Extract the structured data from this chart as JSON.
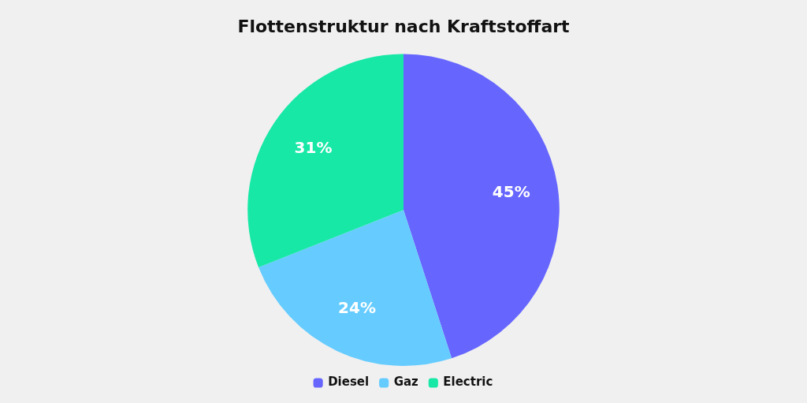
{
  "chart_data": {
    "type": "pie",
    "title": "Flottenstruktur nach Kraftstoffart",
    "categories": [
      "Diesel",
      "Gaz",
      "Electric"
    ],
    "values": [
      45,
      24,
      31
    ],
    "colors": [
      "#6666ff",
      "#66ccff",
      "#17e8a6"
    ],
    "value_labels": [
      "45%",
      "24%",
      "31%"
    ],
    "legend": "bottom"
  }
}
